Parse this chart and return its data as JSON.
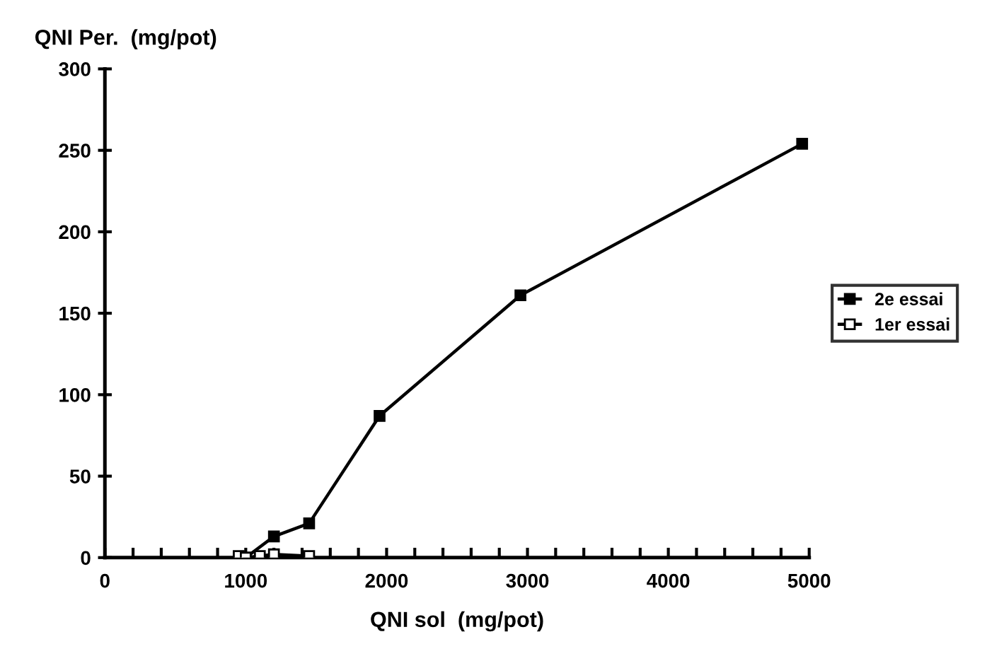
{
  "chart_data": {
    "type": "line",
    "xlabel": "QNI sol  (mg/pot)",
    "ylabel": "QNI Per.  (mg/pot)",
    "series": [
      {
        "name": "2e essai",
        "color": "#000000",
        "x": [
          950,
          1000,
          1200,
          1450,
          1950,
          2950,
          4950
        ],
        "values": [
          0,
          0,
          13,
          21,
          87,
          161,
          254
        ]
      },
      {
        "name": "1er essai",
        "color": "#000000",
        "x": [
          950,
          1000,
          1100,
          1200,
          1450
        ],
        "values": [
          1,
          0,
          1,
          2,
          1
        ]
      }
    ],
    "xlim": [
      0,
      5000
    ],
    "ylim": [
      0,
      300
    ],
    "xticks": [
      0,
      {
        "value": 200,
        "label": null
      },
      {
        "value": 400,
        "label": null
      },
      {
        "value": 600,
        "label": null
      },
      {
        "value": 800,
        "label": null
      },
      1000,
      {
        "value": 1200,
        "label": null
      },
      {
        "value": 1400,
        "label": null
      },
      {
        "value": 1600,
        "label": null
      },
      {
        "value": 1800,
        "label": null
      },
      2000,
      {
        "value": 2200,
        "label": null
      },
      {
        "value": 2400,
        "label": null
      },
      {
        "value": 2600,
        "label": null
      },
      {
        "value": 2800,
        "label": null
      },
      3000,
      {
        "value": 3200,
        "label": null
      },
      {
        "value": 3400,
        "label": null
      },
      {
        "value": 3600,
        "label": null
      },
      {
        "value": 3800,
        "label": null
      },
      4000,
      {
        "value": 4200,
        "label": null
      },
      {
        "value": 4400,
        "label": null
      },
      {
        "value": 4600,
        "label": null
      },
      {
        "value": 4800,
        "label": null
      },
      5000
    ],
    "yticks": [
      0,
      50,
      100,
      150,
      200,
      250,
      300
    ],
    "marker": "square",
    "grid": false,
    "legend": "right"
  }
}
